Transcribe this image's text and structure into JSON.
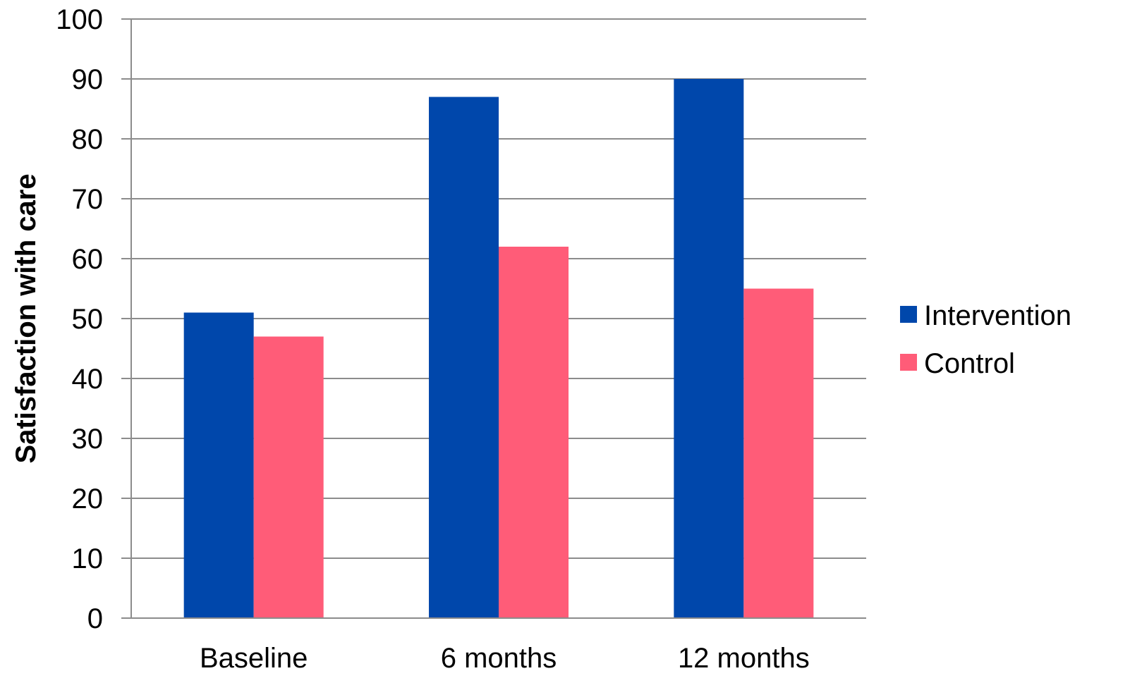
{
  "chart_data": {
    "type": "bar",
    "title": "",
    "xlabel": "",
    "ylabel": "Satisfaction with care",
    "categories": [
      "Baseline",
      "6 months",
      "12 months"
    ],
    "series": [
      {
        "name": "Intervention",
        "values": [
          51,
          87,
          90
        ],
        "color": "#0047AB"
      },
      {
        "name": "Control",
        "values": [
          47,
          62,
          55
        ],
        "color": "#FF5C78"
      }
    ],
    "ylim": [
      0,
      100
    ],
    "yticks": [
      0,
      10,
      20,
      30,
      40,
      50,
      60,
      70,
      80,
      90,
      100
    ],
    "grid": true,
    "legend_position": "right"
  }
}
